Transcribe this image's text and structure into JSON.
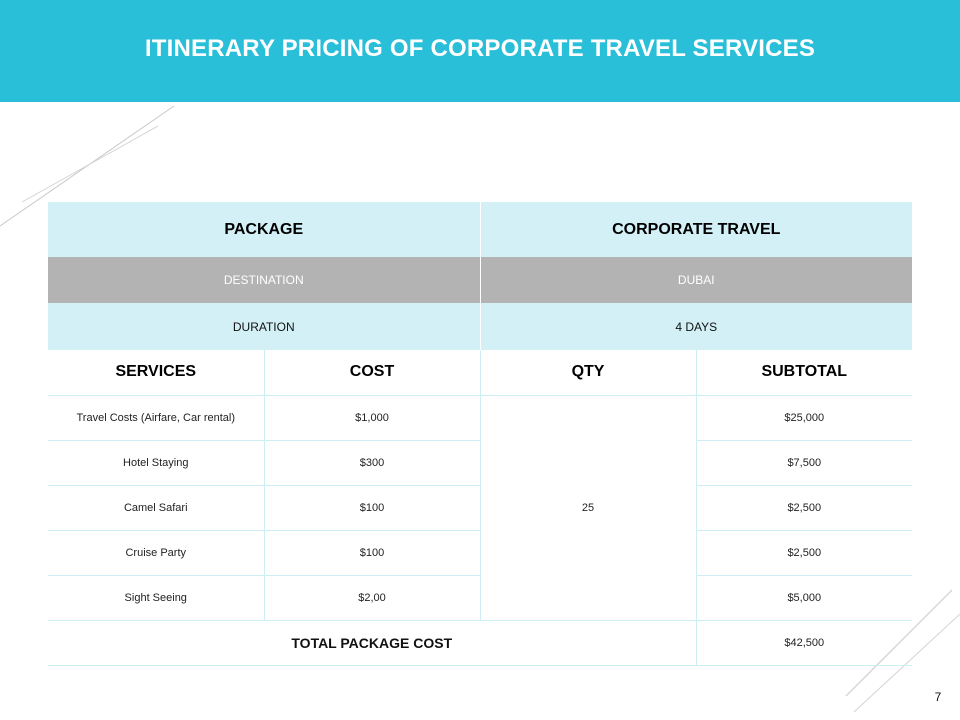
{
  "title": "ITINERARY PRICING OF CORPORATE TRAVEL SERVICES",
  "table": {
    "package": {
      "label": "PACKAGE",
      "value": "CORPORATE TRAVEL"
    },
    "destination": {
      "label": "DESTINATION",
      "value": "DUBAI"
    },
    "duration": {
      "label": "DURATION",
      "value": "4 DAYS"
    },
    "headers": {
      "services": "SERVICES",
      "cost": "COST",
      "qty": "QTY",
      "subtotal": "SUBTOTAL"
    },
    "qty_value": "25",
    "rows": [
      {
        "service": "Travel Costs (Airfare, Car rental)",
        "cost": "$1,000",
        "subtotal": "$25,000"
      },
      {
        "service": "Hotel Staying",
        "cost": "$300",
        "subtotal": "$7,500"
      },
      {
        "service": "Camel Safari",
        "cost": "$100",
        "subtotal": "$2,500"
      },
      {
        "service": "Cruise Party",
        "cost": "$100",
        "subtotal": "$2,500"
      },
      {
        "service": "Sight Seeing",
        "cost": "$2,00",
        "subtotal": "$5,000"
      }
    ],
    "total": {
      "label": "TOTAL PACKAGE COST",
      "value": "$42,500"
    }
  },
  "page_number": "7",
  "colors": {
    "header_bg": "#29bfd9",
    "light_row_bg": "#d3f0f7",
    "gray_row_bg": "#b3b3b3"
  }
}
